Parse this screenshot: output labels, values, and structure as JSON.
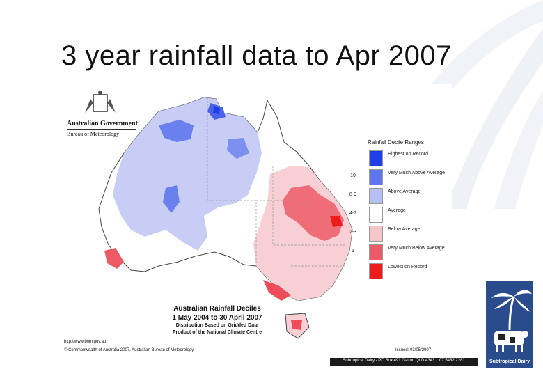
{
  "slide": {
    "title": "3 year rainfall data to Apr 2007"
  },
  "map": {
    "government_name": "Australian Government",
    "bureau_name": "Bureau of Meteorology",
    "caption_title": "Australian Rainfall Deciles",
    "caption_period": "1 May 2004 to 30 April 2007",
    "caption_note_1": "Distribution Based on Gridded Data",
    "caption_note_2": "Product of the National Climate Centre",
    "url": "http://www.bom.gov.au",
    "copyright": "© Commonwealth of Australia 2007, Australian Bureau of Meteorology",
    "issued": "Issued: 03/05/2007"
  },
  "legend": {
    "title": "Rainfall Decile Ranges",
    "items": [
      {
        "range": "",
        "label": "Highest on Record",
        "color": "#1f3fe6"
      },
      {
        "range": "10",
        "label": "Very Much Above Average",
        "color": "#5f76ee"
      },
      {
        "range": "8-9",
        "label": "Above Average",
        "color": "#b7c0f3"
      },
      {
        "range": "4-7",
        "label": "Average",
        "color": "#ffffff"
      },
      {
        "range": "2-3",
        "label": "Below Average",
        "color": "#f6c6cc"
      },
      {
        "range": "1",
        "label": "Very Much Below Average",
        "color": "#ec5b66"
      },
      {
        "range": "",
        "label": "Lowest on Record",
        "color": "#ee1c1c"
      }
    ]
  },
  "footer": {
    "address": "Subtropical Dairy - PO Box 491 Gatton QLD 4343 t: 07 5482 2281"
  },
  "logo": {
    "name": "Subtropical Dairy",
    "color": "#2a4b8c"
  }
}
